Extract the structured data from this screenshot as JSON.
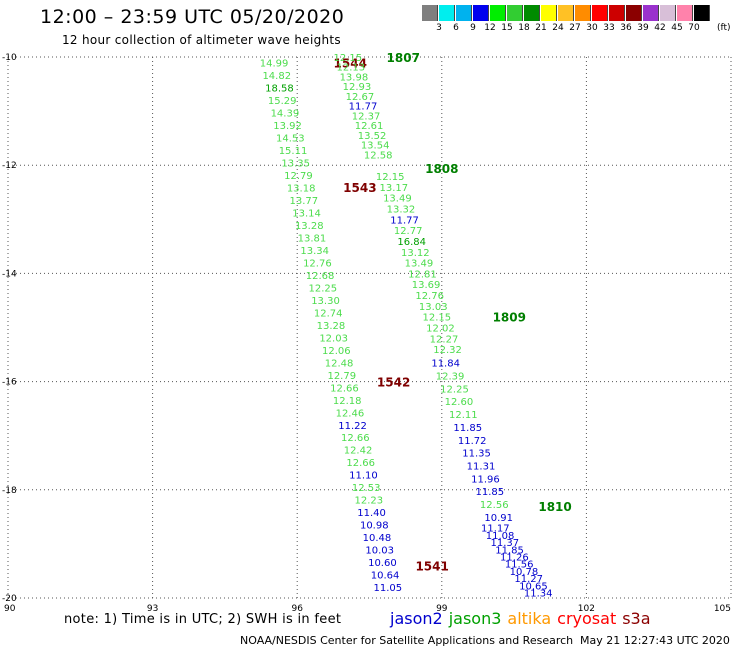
{
  "header": {
    "title": "12:00 – 23:59 UTC 05/20/2020",
    "subtitle": "12 hour collection of altimeter wave heights"
  },
  "color_scale": {
    "labels": [
      "3",
      "6",
      "9",
      "12",
      "15",
      "18",
      "21",
      "24",
      "27",
      "30",
      "33",
      "36",
      "39",
      "42",
      "45",
      "70"
    ],
    "colors": [
      "#7f7f7f",
      "#00eeee",
      "#00b2ee",
      "#0000ee",
      "#00ee00",
      "#32cd32",
      "#008b00",
      "#ffff00",
      "#ffc125",
      "#ff8c00",
      "#ff0000",
      "#cd0000",
      "#8b0000",
      "#9a32cd",
      "#d8bfd8",
      "#ff82ab",
      "#000000"
    ],
    "unit": "(ft)"
  },
  "note": "note: 1) Time is in UTC; 2) SWH is in feet",
  "legend": [
    {
      "label": "jason2",
      "color": "#0000cd"
    },
    {
      "label": "jason3",
      "color": "#00a000"
    },
    {
      "label": "altika",
      "color": "#ff9900"
    },
    {
      "label": "cryosat",
      "color": "#ff0000"
    },
    {
      "label": "s3a",
      "color": "#8b0000"
    }
  ],
  "footer": {
    "credit": "NOAA/NESDIS Center for Satellite Applications and Research",
    "timestamp": "May 21 12:27:43 UTC 2020"
  },
  "chart_data": {
    "type": "scatter",
    "xlim": [
      90,
      105
    ],
    "ylim": [
      -20,
      -10
    ],
    "x_ticks": [
      "90",
      "93",
      "96",
      "99",
      "102",
      "105"
    ],
    "y_ticks": [
      "-10",
      "-12",
      "-14",
      "-16",
      "-18",
      "-20"
    ],
    "grid": true,
    "value_colors": {
      "low": "#0000cd",
      "mid": "#4cdc4c",
      "high": "#00a000"
    },
    "tracks": [
      {
        "satellite": "s3a",
        "pass_label": "1544",
        "label_color": "#7f0000",
        "label_x": 97.1,
        "label_y": -10.1,
        "start_x": 95.52,
        "start_y": -10.1,
        "end_x": 97.88,
        "end_y": -19.8,
        "values": [
          "14.99",
          "14.82",
          "18.58",
          "15.29",
          "14.39",
          "13.92",
          "14.53",
          "15.11",
          "13.35",
          "12.79",
          "13.18",
          "13.77",
          "13.14",
          "13.28",
          "13.81",
          "13.34",
          "12.76",
          "12.68",
          "12.25",
          "13.30",
          "12.74",
          "13.28",
          "12.03",
          "12.06",
          "12.48",
          "12.79",
          "12.66",
          "12.18",
          "12.46",
          "11.22",
          "12.66",
          "12.42",
          "12.66",
          "11.10",
          "12.53",
          "12.23",
          "11.40",
          "10.98",
          "10.48",
          "10.03",
          "10.60",
          "10.64",
          "11.05"
        ]
      },
      {
        "satellite": "jason3",
        "pass_label": "1807",
        "label_color": "#007f00",
        "label_x": 98.2,
        "label_y": -10.0,
        "start_x": 97.05,
        "start_y": -10.0,
        "end_x": 97.68,
        "end_y": -11.8,
        "values": [
          "12.15",
          "12.13",
          "13.98",
          "12.93",
          "12.67",
          "11.77",
          "12.37",
          "12.61",
          "13.52",
          "13.54",
          "12.58"
        ]
      },
      {
        "satellite": "s3a",
        "pass_label": "1543",
        "label_color": "#7f0000",
        "label_x": 97.3,
        "label_y": -12.4,
        "start_x": 0,
        "start_y": 0,
        "end_x": 0,
        "end_y": 0,
        "values": []
      },
      {
        "satellite": "jason3",
        "pass_label": "1808",
        "label_color": "#007f00",
        "label_x": 99.0,
        "label_y": -12.05,
        "start_x": 97.93,
        "start_y": -12.2,
        "end_x": 99.12,
        "end_y": -15.4,
        "values": [
          "12.15",
          "13.17",
          "13.49",
          "13.32",
          "11.77",
          "12.77",
          "16.84",
          "13.12",
          "13.49",
          "12.81",
          "13.69",
          "12.76",
          "13.03",
          "12.15",
          "12.02",
          "12.27",
          "12.32"
        ]
      },
      {
        "satellite": "s3a",
        "pass_label": "1542",
        "label_color": "#7f0000",
        "label_x": 98.0,
        "label_y": -16.0,
        "start_x": 0,
        "start_y": 0,
        "end_x": 0,
        "end_y": 0,
        "values": []
      },
      {
        "satellite": "jason3",
        "pass_label": "1809",
        "label_color": "#007f00",
        "label_x": 100.4,
        "label_y": -14.8,
        "start_x": 99.08,
        "start_y": -15.65,
        "end_x": 100.18,
        "end_y": -18.5,
        "values": [
          "11.84",
          "12.39",
          "12.25",
          "12.60",
          "12.11",
          "11.85",
          "11.72",
          "11.35",
          "11.31",
          "11.96",
          "11.85",
          "12.56",
          "10.91"
        ]
      },
      {
        "satellite": "jason3",
        "pass_label": "1810",
        "label_color": "#007f00",
        "label_x": 101.35,
        "label_y": -18.3,
        "start_x": 100.11,
        "start_y": -18.7,
        "end_x": 101.0,
        "end_y": -19.9,
        "values": [
          "11.17",
          "11.08",
          "11.37",
          "11.85",
          "11.26",
          "11.56",
          "10.78",
          "11.27",
          "10.65",
          "11.34"
        ]
      },
      {
        "satellite": "s3a",
        "pass_label": "1541",
        "label_color": "#7f0000",
        "label_x": 98.8,
        "label_y": -19.4,
        "start_x": 0,
        "start_y": 0,
        "end_x": 0,
        "end_y": 0,
        "values": []
      }
    ]
  }
}
